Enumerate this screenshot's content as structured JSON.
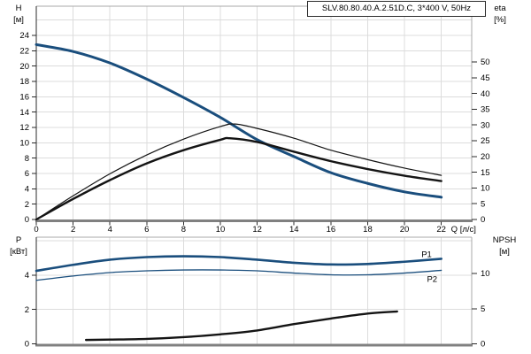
{
  "title_box": {
    "text": "SLV.80.80.40.A.2.51D.C, 3*400 V, 50Hz"
  },
  "colors": {
    "curve_blue": "#1A4E7D",
    "curve_black": "#141414",
    "grid": "#DCDCDC",
    "border": "#A8A8A8",
    "axis_dark": "#2B2B2B",
    "axis_thick": "#808080",
    "annotation_blue": "#1A4E7D"
  },
  "chart_data": [
    {
      "type": "line",
      "title": "SLV.80.80.40.A.2.51D.C, 3*400 V, 50Hz",
      "x_axis": {
        "name": "Q [л/с]",
        "range": [
          0,
          23.65
        ],
        "ticks": [
          0,
          2,
          4,
          6,
          8,
          10,
          12,
          14,
          16,
          18,
          20,
          22
        ],
        "grid": [
          2,
          4,
          6,
          8,
          10,
          12,
          14,
          16,
          18,
          20,
          22
        ],
        "show_labels": true
      },
      "y_left": {
        "name": "H",
        "unit": "[м]",
        "range": [
          0,
          27.8
        ],
        "ticks": [
          0,
          2,
          4,
          6,
          8,
          10,
          12,
          14,
          16,
          18,
          20,
          22,
          24
        ],
        "grid": [
          2,
          4,
          6,
          8,
          10,
          12,
          14,
          16,
          18,
          20,
          22,
          24,
          26
        ]
      },
      "y_right": {
        "name": "eta",
        "unit": "[%]",
        "range": [
          0,
          67.7
        ],
        "ticks": [
          0,
          5,
          10,
          15,
          20,
          25,
          30,
          35,
          40,
          45,
          50
        ],
        "grid": []
      },
      "series": [
        {
          "name": "head-curve",
          "axis": "left",
          "color": "#1A4E7D",
          "width": 3,
          "points": [
            [
              0,
              22.8
            ],
            [
              2,
              21.9
            ],
            [
              4,
              20.4
            ],
            [
              6,
              18.3
            ],
            [
              8,
              15.9
            ],
            [
              10,
              13.3
            ],
            [
              12,
              10.4
            ],
            [
              14,
              8.2
            ],
            [
              16,
              6.1
            ],
            [
              18,
              4.7
            ],
            [
              20,
              3.6
            ],
            [
              22,
              2.9
            ]
          ]
        },
        {
          "name": "eta-pump-curve",
          "axis": "right",
          "color": "#141414",
          "width": 1.2,
          "points": [
            [
              0,
              0
            ],
            [
              2,
              7.5
            ],
            [
              4,
              14.5
            ],
            [
              6,
              20.5
            ],
            [
              8,
              25.5
            ],
            [
              10,
              29.5
            ],
            [
              10.8,
              30.3
            ],
            [
              12,
              28.9
            ],
            [
              14,
              25.8
            ],
            [
              16,
              22
            ],
            [
              18,
              19
            ],
            [
              20,
              16.3
            ],
            [
              22,
              14
            ]
          ]
        },
        {
          "name": "eta-pump-motor-curve",
          "axis": "right",
          "color": "#141414",
          "width": 2.4,
          "points": [
            [
              0,
              0
            ],
            [
              2,
              6.5
            ],
            [
              4,
              12.5
            ],
            [
              6,
              17.8
            ],
            [
              8,
              22
            ],
            [
              10,
              25.3
            ],
            [
              10.5,
              25.8
            ],
            [
              12,
              24.6
            ],
            [
              14,
              21.5
            ],
            [
              16,
              18.5
            ],
            [
              18,
              16
            ],
            [
              20,
              13.9
            ],
            [
              22,
              12.2
            ]
          ]
        }
      ],
      "annotations": []
    },
    {
      "type": "line",
      "title": "",
      "x_axis": {
        "name": "",
        "range": [
          0,
          23.65
        ],
        "ticks": [],
        "grid": [
          2,
          4,
          6,
          8,
          10,
          12,
          14,
          16,
          18,
          20,
          22
        ],
        "show_labels": false
      },
      "y_left": {
        "name": "P",
        "unit": "[кВт]",
        "range": [
          0,
          6.21
        ],
        "ticks": [
          0,
          2,
          4
        ],
        "grid": [
          2,
          4,
          6
        ]
      },
      "y_right": {
        "name": "NPSH",
        "unit": "[м]",
        "range": [
          0,
          15.16
        ],
        "ticks": [
          0,
          5,
          10
        ],
        "grid": []
      },
      "series": [
        {
          "name": "p1-power-curve",
          "axis": "left",
          "color": "#1A4E7D",
          "width": 2.6,
          "points": [
            [
              0,
              4.25
            ],
            [
              2,
              4.6
            ],
            [
              4,
              4.9
            ],
            [
              6,
              5.05
            ],
            [
              8,
              5.1
            ],
            [
              10,
              5.05
            ],
            [
              12,
              4.9
            ],
            [
              14,
              4.72
            ],
            [
              16,
              4.62
            ],
            [
              18,
              4.65
            ],
            [
              20,
              4.78
            ],
            [
              22,
              4.95
            ]
          ]
        },
        {
          "name": "p2-power-curve",
          "axis": "left",
          "color": "#1A4E7D",
          "width": 1.3,
          "points": [
            [
              0,
              3.7
            ],
            [
              2,
              3.95
            ],
            [
              4,
              4.15
            ],
            [
              6,
              4.25
            ],
            [
              8,
              4.3
            ],
            [
              10,
              4.3
            ],
            [
              12,
              4.25
            ],
            [
              14,
              4.12
            ],
            [
              16,
              4.02
            ],
            [
              18,
              4.02
            ],
            [
              20,
              4.12
            ],
            [
              22,
              4.28
            ]
          ]
        },
        {
          "name": "npsh-curve",
          "axis": "right",
          "color": "#141414",
          "width": 2.4,
          "points": [
            [
              2.7,
              0.55
            ],
            [
              4,
              0.6
            ],
            [
              6,
              0.7
            ],
            [
              8,
              0.95
            ],
            [
              10,
              1.35
            ],
            [
              12,
              1.9
            ],
            [
              14,
              2.8
            ],
            [
              16,
              3.6
            ],
            [
              18,
              4.3
            ],
            [
              19.6,
              4.6
            ]
          ]
        }
      ],
      "annotations": [
        {
          "text": "P1",
          "x": 21.2,
          "y": 5.05,
          "color": "#1A4E7D"
        },
        {
          "text": "P2",
          "x": 21.5,
          "y": 3.62,
          "color": "#1A4E7D"
        }
      ]
    }
  ]
}
